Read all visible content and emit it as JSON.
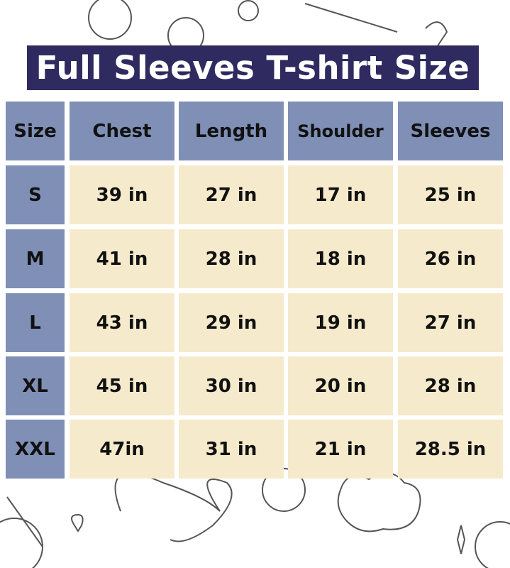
{
  "title": "Full Sleeves T-shirt Size",
  "colors": {
    "title_bg": "#2f2b60",
    "header_bg": "#7f8fb6",
    "cell_bg": "#f5eacb"
  },
  "table": {
    "headers": [
      "Size",
      "Chest",
      "Length",
      "Shoulder",
      "Sleeves"
    ],
    "rows": [
      [
        "S",
        "39 in",
        "27 in",
        "17 in",
        "25 in"
      ],
      [
        "M",
        "41 in",
        "28 in",
        "18 in",
        "26 in"
      ],
      [
        "L",
        "43 in",
        "29 in",
        "19 in",
        "27 in"
      ],
      [
        "XL",
        "45 in",
        "30 in",
        "20 in",
        "28 in"
      ],
      [
        "XXL",
        "47in",
        "31 in",
        "21 in",
        "28.5 in"
      ]
    ]
  }
}
